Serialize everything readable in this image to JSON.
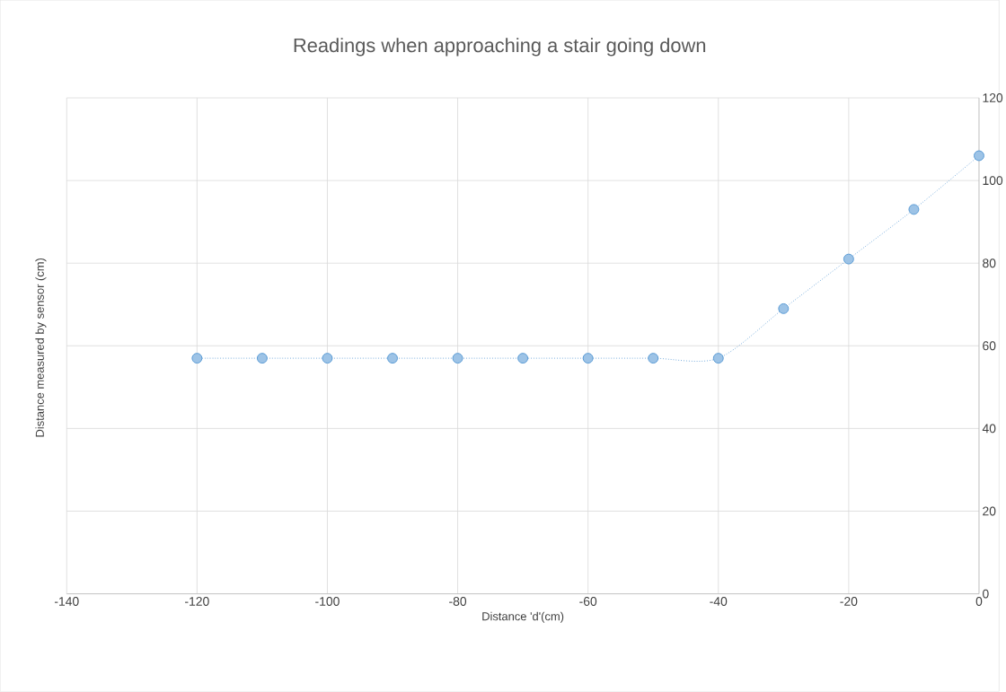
{
  "chart_data": {
    "type": "line",
    "title": "Readings when approaching a stair going down",
    "xlabel": "Distance 'd'(cm)",
    "ylabel": "Distance measured by sensor (cm)",
    "x": [
      -120,
      -110,
      -100,
      -90,
      -80,
      -70,
      -60,
      -50,
      -40,
      -30,
      -20,
      -10,
      0
    ],
    "series": [
      {
        "color": "#5b9bd5",
        "values": [
          57,
          57,
          57,
          57,
          57,
          57,
          57,
          57,
          57,
          69,
          81,
          93,
          106
        ]
      }
    ],
    "xlim": [
      -140,
      0
    ],
    "ylim": [
      0,
      120
    ],
    "xticks": [
      -140,
      -120,
      -100,
      -80,
      -60,
      -40,
      -20,
      0
    ],
    "yticks": [
      0,
      20,
      40,
      60,
      80,
      100,
      120
    ],
    "grid": true,
    "marker": "circle",
    "line_style": "dotted"
  }
}
